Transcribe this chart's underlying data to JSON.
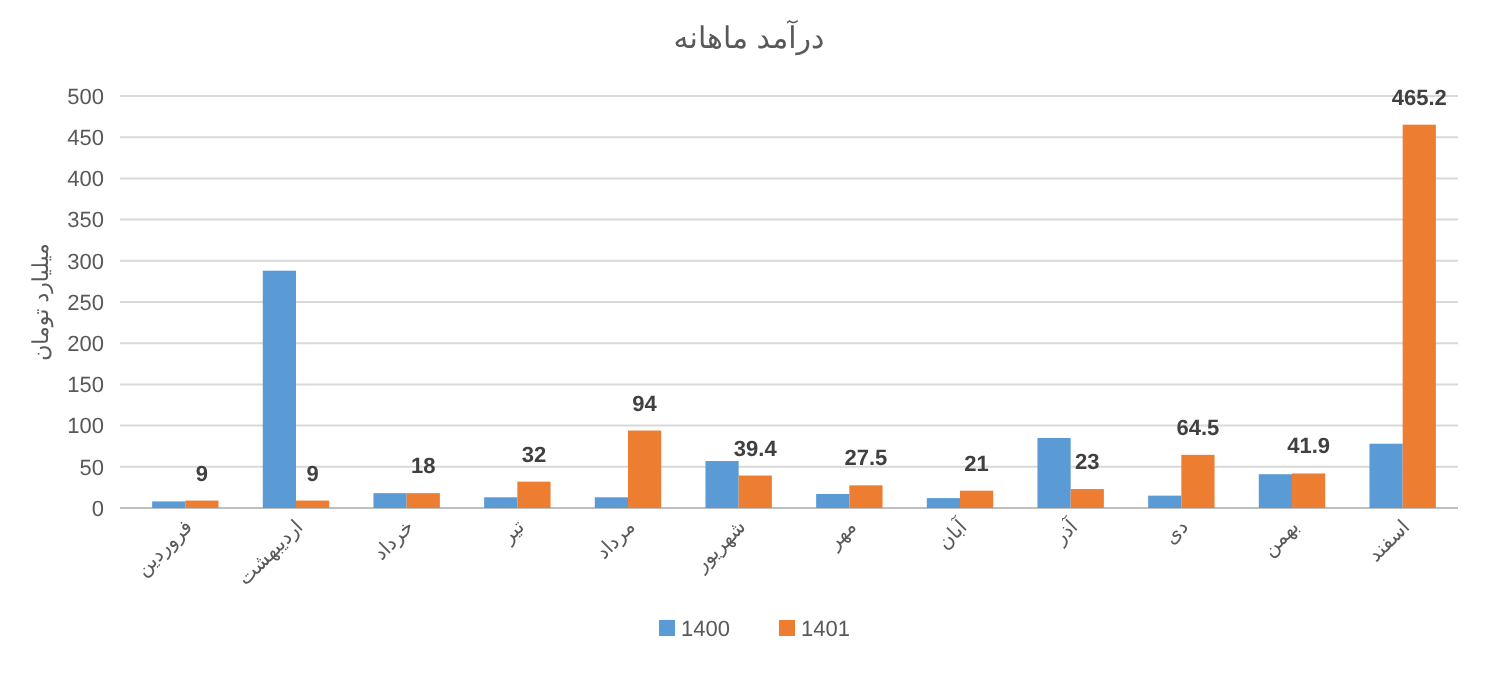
{
  "chart_data": {
    "type": "bar",
    "title": "درآمد ماهانه",
    "ylabel": "میلیارد تومان",
    "categories": [
      "فروردین",
      "اردیبهشت",
      "خرداد",
      "تیر",
      "مرداد",
      "شهریور",
      "مهر",
      "آبان",
      "آذر",
      "دی",
      "بهمن",
      "اسفند"
    ],
    "series": [
      {
        "name": "1400",
        "color": "#5b9bd5",
        "values": [
          8,
          288,
          18,
          13,
          13,
          57,
          17,
          12,
          85,
          15,
          41,
          78
        ]
      },
      {
        "name": "1401",
        "color": "#ed7d31",
        "values": [
          9,
          9,
          18,
          32,
          94,
          39.4,
          27.5,
          21,
          23,
          64.5,
          41.9,
          465.2
        ],
        "value_labels": [
          "9",
          "9",
          "18",
          "32",
          "94",
          "39.4",
          "27.5",
          "21",
          "23",
          "64.5",
          "41.9",
          "465.2"
        ]
      }
    ],
    "ylim": [
      0,
      500
    ],
    "yticks": [
      0,
      50,
      100,
      150,
      200,
      250,
      300,
      350,
      400,
      450,
      500
    ],
    "grid": "y",
    "legend": "bottom"
  }
}
